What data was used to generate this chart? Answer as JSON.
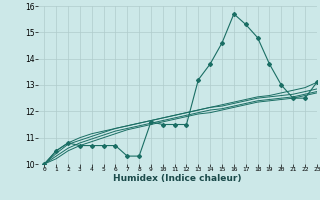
{
  "xlabel": "Humidex (Indice chaleur)",
  "bg_color": "#cce8e8",
  "grid_color": "#b0cccc",
  "line_color": "#1a6e64",
  "xlim": [
    -0.5,
    23
  ],
  "ylim": [
    10,
    16
  ],
  "xticks": [
    0,
    1,
    2,
    3,
    4,
    5,
    6,
    7,
    8,
    9,
    10,
    11,
    12,
    13,
    14,
    15,
    16,
    17,
    18,
    19,
    20,
    21,
    22,
    23
  ],
  "yticks": [
    10,
    11,
    12,
    13,
    14,
    15,
    16
  ],
  "main_series": [
    10.0,
    10.5,
    10.8,
    10.7,
    10.7,
    10.7,
    10.7,
    10.3,
    10.3,
    11.6,
    11.5,
    11.5,
    11.5,
    13.2,
    13.8,
    14.6,
    15.7,
    15.3,
    14.8,
    13.8,
    13.0,
    12.5,
    12.5,
    13.1
  ],
  "line1": [
    10.0,
    10.5,
    10.8,
    11.0,
    11.15,
    11.25,
    11.35,
    11.45,
    11.55,
    11.65,
    11.75,
    11.85,
    11.95,
    12.05,
    12.15,
    12.25,
    12.35,
    12.45,
    12.55,
    12.6,
    12.7,
    12.8,
    12.9,
    13.1
  ],
  "line2": [
    10.0,
    10.4,
    10.75,
    10.9,
    11.05,
    11.2,
    11.35,
    11.45,
    11.55,
    11.65,
    11.75,
    11.85,
    11.95,
    12.05,
    12.15,
    12.2,
    12.3,
    12.4,
    12.5,
    12.55,
    12.6,
    12.65,
    12.75,
    12.85
  ],
  "line3": [
    10.0,
    10.3,
    10.6,
    10.8,
    10.95,
    11.1,
    11.25,
    11.35,
    11.45,
    11.55,
    11.65,
    11.75,
    11.85,
    11.95,
    12.05,
    12.1,
    12.2,
    12.3,
    12.4,
    12.45,
    12.5,
    12.55,
    12.65,
    12.75
  ],
  "line4": [
    10.0,
    10.2,
    10.5,
    10.7,
    10.85,
    11.0,
    11.15,
    11.3,
    11.4,
    11.5,
    11.6,
    11.7,
    11.8,
    11.9,
    11.95,
    12.05,
    12.15,
    12.25,
    12.35,
    12.4,
    12.45,
    12.5,
    12.6,
    12.7
  ]
}
